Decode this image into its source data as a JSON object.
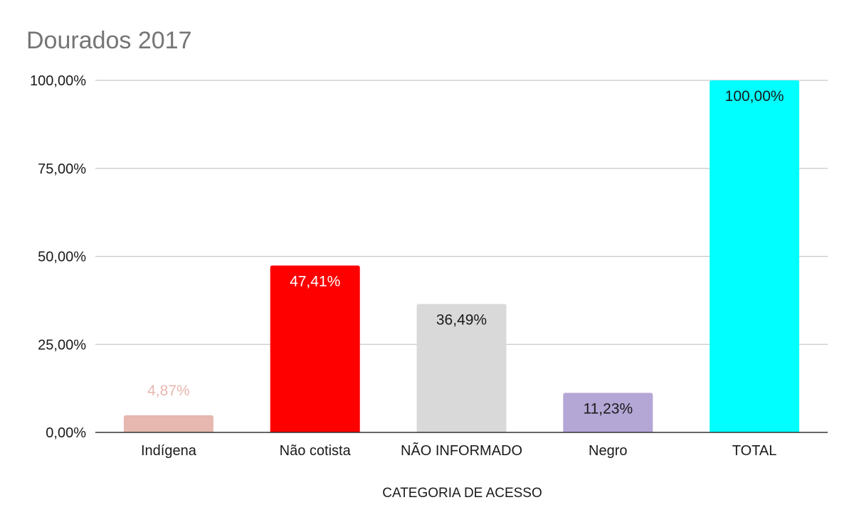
{
  "chart_data": {
    "type": "bar",
    "title": "Dourados 2017",
    "xlabel": "CATEGORIA DE ACESSO",
    "ylabel": "",
    "ylim": [
      0,
      100
    ],
    "yticks": [
      0,
      25,
      50,
      75,
      100
    ],
    "ytick_labels": [
      "0,00%",
      "25,00%",
      "50,00%",
      "75,00%",
      "100,00%"
    ],
    "grid": true,
    "categories": [
      "Indígena",
      "Não cotista",
      "NÃO INFORMADO",
      "Negro",
      "TOTAL"
    ],
    "values": [
      4.87,
      47.41,
      36.49,
      11.23,
      100.0
    ],
    "data_labels": [
      "4,87%",
      "47,41%",
      "36,49%",
      "11,23%",
      "100,00%"
    ],
    "colors": [
      "#e6b8af",
      "#ff0000",
      "#d9d9d9",
      "#b4a7d6",
      "#00ffff"
    ],
    "label_colors": [
      "#e6b8af",
      "#ffffff",
      "#1a1a1a",
      "#1a1a1a",
      "#1a1a1a"
    ],
    "label_inside": [
      false,
      true,
      true,
      true,
      true
    ]
  }
}
